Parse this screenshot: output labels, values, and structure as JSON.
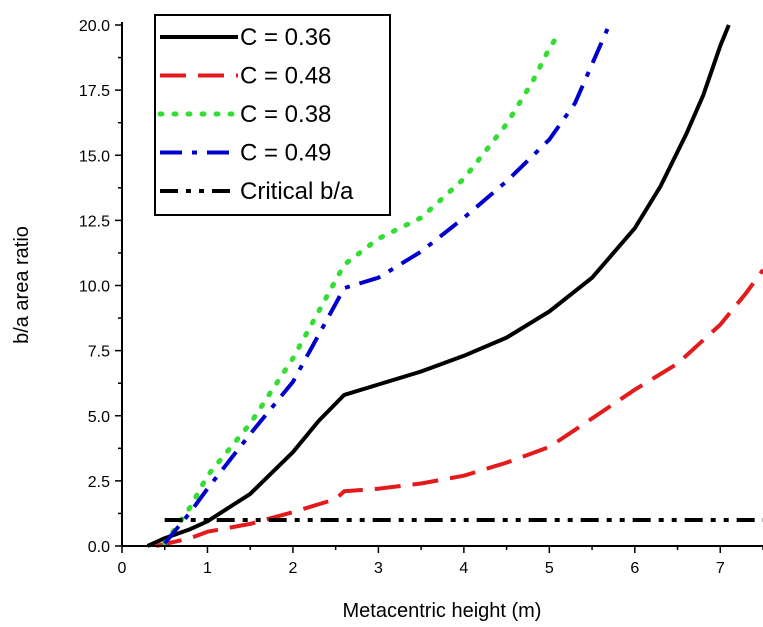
{
  "chart_data": {
    "type": "line",
    "xlabel": "Metacentric height (m)",
    "ylabel": "b/a area ratio",
    "xlim": [
      0,
      7.5
    ],
    "ylim": [
      0,
      20
    ],
    "x_ticks": [
      "0",
      "1",
      "2",
      "3",
      "4",
      "5",
      "6",
      "7"
    ],
    "y_ticks": [
      "0.0",
      "2.5",
      "5.0",
      "7.5",
      "10.0",
      "12.5",
      "15.0",
      "17.5",
      "20.0"
    ],
    "grid": false,
    "legend_position": "top-left",
    "series": [
      {
        "name": "C = 0.36",
        "color": "#000000",
        "style": "solid",
        "points": [
          [
            0.3,
            0
          ],
          [
            0.5,
            0.3
          ],
          [
            0.8,
            0.65
          ],
          [
            1.0,
            0.95
          ],
          [
            1.5,
            2.0
          ],
          [
            2.0,
            3.6
          ],
          [
            2.3,
            4.8
          ],
          [
            2.6,
            5.8
          ],
          [
            3.0,
            6.2
          ],
          [
            3.5,
            6.7
          ],
          [
            4.0,
            7.3
          ],
          [
            4.5,
            8.0
          ],
          [
            5.0,
            9.0
          ],
          [
            5.5,
            10.3
          ],
          [
            6.0,
            12.2
          ],
          [
            6.3,
            13.8
          ],
          [
            6.6,
            15.8
          ],
          [
            6.8,
            17.3
          ],
          [
            7.0,
            19.2
          ],
          [
            7.1,
            20.0
          ]
        ]
      },
      {
        "name": "C = 0.48",
        "color": "#e41a1c",
        "style": "dashed",
        "points": [
          [
            0.4,
            0
          ],
          [
            0.8,
            0.3
          ],
          [
            1.0,
            0.55
          ],
          [
            1.5,
            0.85
          ],
          [
            2.0,
            1.3
          ],
          [
            2.5,
            1.8
          ],
          [
            2.6,
            2.1
          ],
          [
            3.0,
            2.2
          ],
          [
            3.5,
            2.4
          ],
          [
            4.0,
            2.7
          ],
          [
            4.5,
            3.2
          ],
          [
            5.0,
            3.8
          ],
          [
            5.5,
            4.9
          ],
          [
            6.0,
            6.0
          ],
          [
            6.5,
            7.0
          ],
          [
            7.0,
            8.5
          ],
          [
            7.3,
            9.7
          ],
          [
            7.5,
            10.6
          ]
        ]
      },
      {
        "name": "C = 0.38",
        "color": "#33dd33",
        "style": "dotted",
        "points": [
          [
            0.5,
            0.1
          ],
          [
            0.8,
            1.5
          ],
          [
            1.0,
            2.7
          ],
          [
            1.5,
            4.7
          ],
          [
            2.0,
            7.2
          ],
          [
            2.3,
            9.0
          ],
          [
            2.6,
            10.8
          ],
          [
            3.0,
            11.8
          ],
          [
            3.5,
            12.6
          ],
          [
            4.0,
            14.1
          ],
          [
            4.5,
            16.2
          ],
          [
            4.8,
            17.8
          ],
          [
            5.0,
            19.1
          ],
          [
            5.1,
            19.6
          ]
        ]
      },
      {
        "name": "C = 0.49",
        "color": "#0000cc",
        "style": "dashdot",
        "points": [
          [
            0.5,
            0.1
          ],
          [
            0.8,
            1.3
          ],
          [
            1.0,
            2.2
          ],
          [
            1.5,
            4.3
          ],
          [
            2.0,
            6.3
          ],
          [
            2.3,
            8.1
          ],
          [
            2.6,
            9.9
          ],
          [
            3.0,
            10.3
          ],
          [
            3.5,
            11.3
          ],
          [
            4.0,
            12.6
          ],
          [
            4.5,
            14.0
          ],
          [
            5.0,
            15.6
          ],
          [
            5.3,
            17.0
          ],
          [
            5.5,
            18.5
          ],
          [
            5.7,
            20.0
          ]
        ]
      },
      {
        "name": "Critical b/a",
        "color": "#000000",
        "style": "dashdotdot",
        "points": [
          [
            0.5,
            1.0
          ],
          [
            7.5,
            1.0
          ]
        ]
      }
    ]
  }
}
